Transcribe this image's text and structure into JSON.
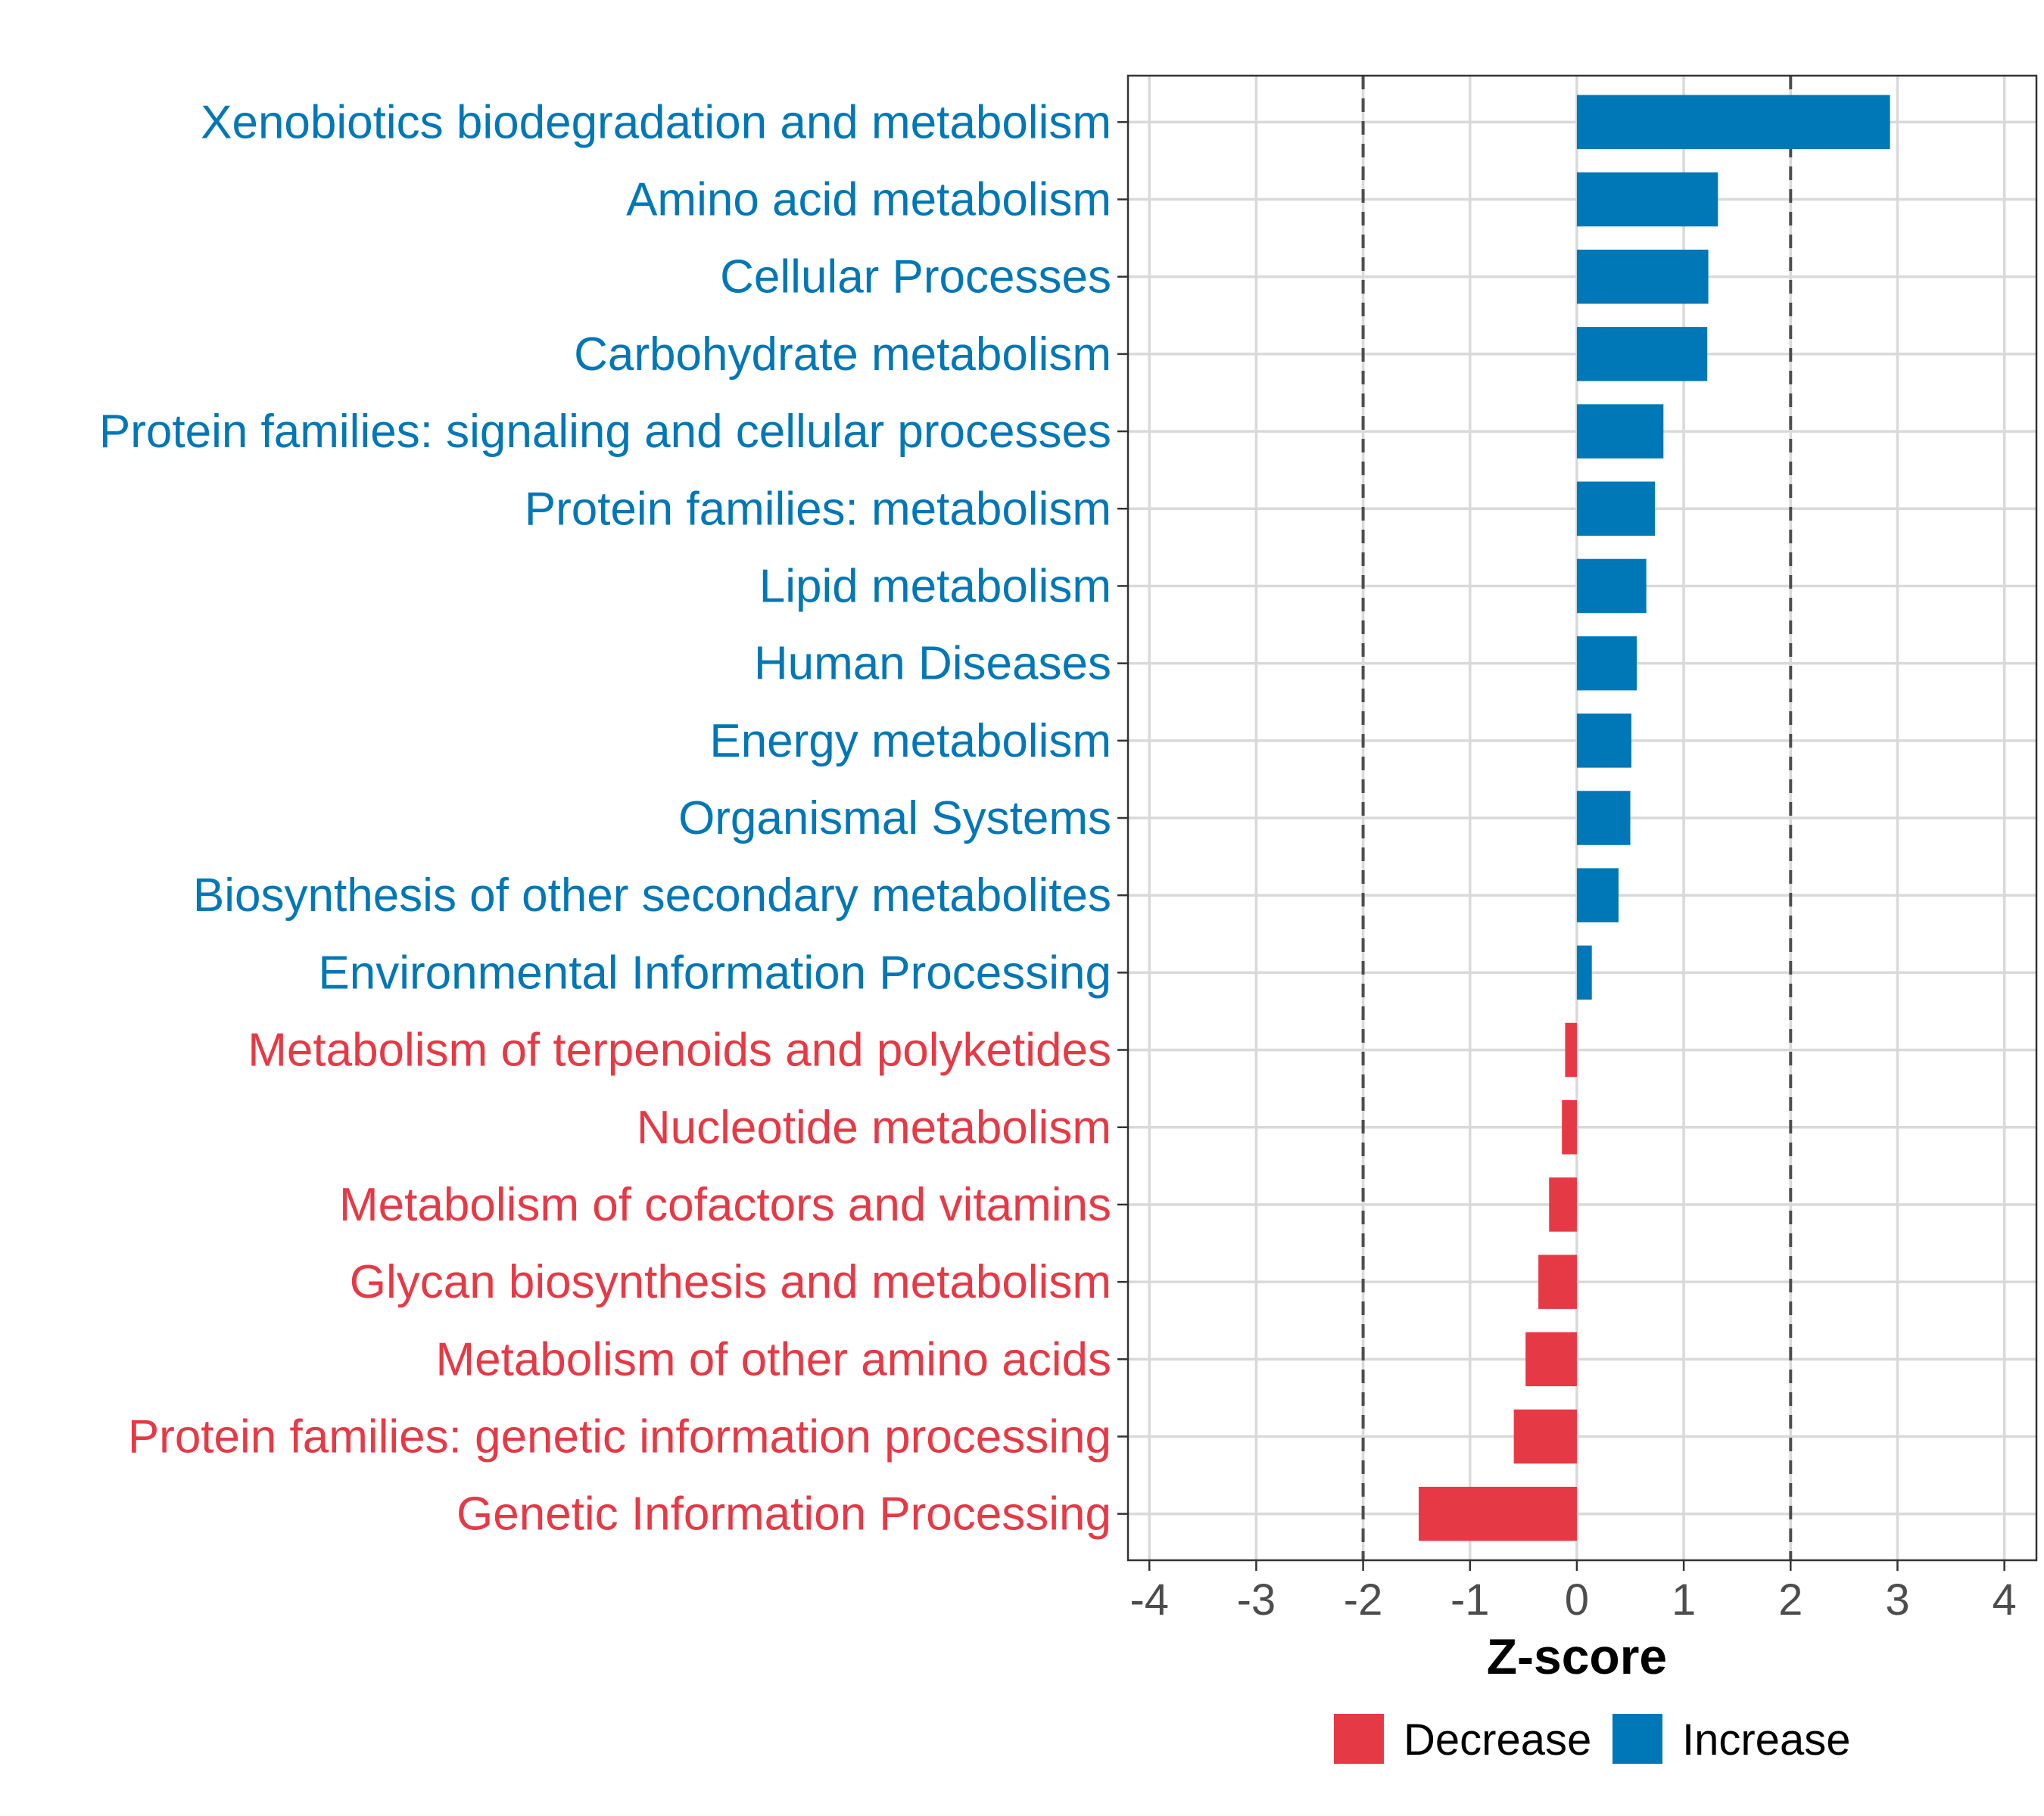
{
  "chart_data": {
    "type": "bar",
    "orientation": "horizontal",
    "xlabel": "Z-score",
    "xlim": [
      -4.2,
      4.3
    ],
    "xticks": [
      -4,
      -3,
      -2,
      -1,
      0,
      1,
      2,
      3,
      4
    ],
    "reference_lines": [
      -2,
      2
    ],
    "grid": true,
    "legend": {
      "position": "bottom",
      "entries": [
        {
          "label": "Decrease",
          "color": "#E63946"
        },
        {
          "label": "Increase",
          "color": "#0077B6"
        }
      ]
    },
    "categories": [
      "Xenobiotics biodegradation and metabolism",
      "Amino acid metabolism",
      "Cellular Processes",
      "Carbohydrate metabolism",
      "Protein families: signaling and cellular processes",
      "Protein families: metabolism",
      "Lipid metabolism",
      "Human Diseases",
      "Energy metabolism",
      "Organismal Systems",
      "Biosynthesis of other secondary metabolites",
      "Environmental Information Processing",
      "Metabolism of terpenoids and polyketides",
      "Nucleotide metabolism",
      "Metabolism of cofactors and vitamins",
      "Glycan biosynthesis and metabolism",
      "Metabolism of other amino acids",
      "Protein families: genetic information processing",
      "Genetic Information Processing"
    ],
    "values": [
      2.93,
      1.32,
      1.23,
      1.22,
      0.81,
      0.73,
      0.65,
      0.56,
      0.51,
      0.5,
      0.39,
      0.14,
      -0.11,
      -0.14,
      -0.26,
      -0.36,
      -0.48,
      -0.59,
      -1.48
    ],
    "groups": [
      "Increase",
      "Increase",
      "Increase",
      "Increase",
      "Increase",
      "Increase",
      "Increase",
      "Increase",
      "Increase",
      "Increase",
      "Increase",
      "Increase",
      "Decrease",
      "Decrease",
      "Decrease",
      "Decrease",
      "Decrease",
      "Decrease",
      "Decrease"
    ]
  }
}
